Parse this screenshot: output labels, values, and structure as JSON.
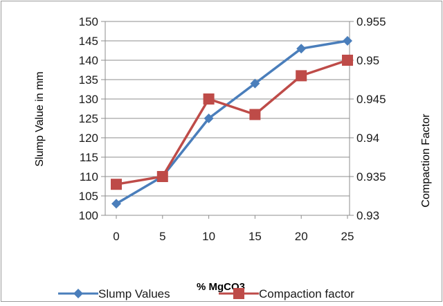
{
  "chart_data": {
    "type": "line",
    "xlabel": "% MgCO3",
    "ylabel": "Slump Value in mm",
    "y2label": "Compaction Factor",
    "x": [
      0,
      5,
      10,
      15,
      20,
      25
    ],
    "x_ticks": [
      "0",
      "5",
      "10",
      "15",
      "20",
      "25"
    ],
    "ylim": [
      100,
      150
    ],
    "y_ticks": [
      "100",
      "105",
      "110",
      "115",
      "120",
      "125",
      "130",
      "135",
      "140",
      "145",
      "150"
    ],
    "y2lim": [
      0.93,
      0.955
    ],
    "y2_ticks": [
      "0.93",
      "0.935",
      "0.94",
      "0.945",
      "0.95",
      "0.955"
    ],
    "grid": true,
    "legend_position": "bottom",
    "series": [
      {
        "name": "Slump Values",
        "axis": "left",
        "marker": "diamond",
        "color": "#4a7ebb",
        "values": [
          103,
          110,
          125,
          134,
          143,
          145
        ]
      },
      {
        "name": "Compaction factor",
        "axis": "right",
        "marker": "square",
        "color": "#be4b48",
        "values": [
          0.934,
          0.935,
          0.945,
          0.943,
          0.948,
          0.95
        ]
      }
    ]
  }
}
